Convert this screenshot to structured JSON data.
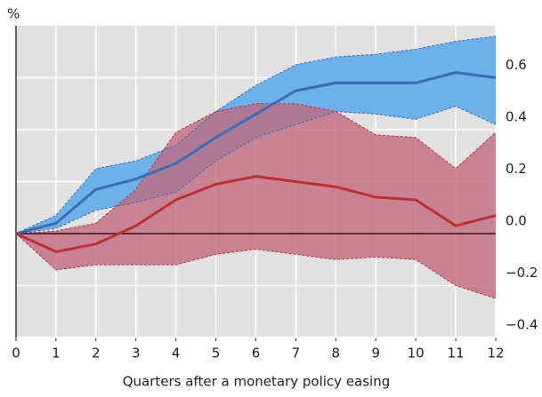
{
  "chart_data": {
    "type": "line",
    "y_label": "%",
    "x_label": "Quarters after a monetary policy easing",
    "x": [
      0,
      1,
      2,
      3,
      4,
      5,
      6,
      7,
      8,
      9,
      10,
      11,
      12
    ],
    "xlim": [
      0,
      12
    ],
    "xticks": [
      0,
      1,
      2,
      3,
      4,
      5,
      6,
      7,
      8,
      9,
      10,
      11,
      12
    ],
    "ylim": [
      -0.4,
      0.8
    ],
    "yticks": [
      {
        "value": -0.4,
        "label": "−0.4"
      },
      {
        "value": -0.2,
        "label": "−0.2"
      },
      {
        "value": 0,
        "label": "0.0"
      },
      0.2,
      0.4,
      0.6
    ],
    "grid": true,
    "series": [
      {
        "color": "#3a6db4",
        "band_color": "#6cb2e8",
        "values": [
          0,
          0.04,
          0.17,
          0.21,
          0.27,
          0.37,
          0.46,
          0.55,
          0.58,
          0.58,
          0.58,
          0.62,
          0.6
        ],
        "upper": [
          0,
          0.07,
          0.25,
          0.28,
          0.34,
          0.47,
          0.57,
          0.65,
          0.68,
          0.69,
          0.71,
          0.74,
          0.76
        ],
        "lower": [
          0,
          0.02,
          0.09,
          0.12,
          0.16,
          0.28,
          0.37,
          0.42,
          0.47,
          0.46,
          0.44,
          0.49,
          0.42
        ]
      },
      {
        "color": "#c0302f",
        "band_color": "#c06a80",
        "values": [
          0,
          -0.07,
          -0.04,
          0.03,
          0.13,
          0.19,
          0.22,
          0.2,
          0.18,
          0.14,
          0.13,
          0.03,
          0.07
        ],
        "upper": [
          0,
          0.01,
          0.04,
          0.17,
          0.39,
          0.47,
          0.5,
          0.5,
          0.47,
          0.38,
          0.37,
          0.25,
          0.39
        ],
        "lower": [
          0,
          -0.14,
          -0.12,
          -0.12,
          -0.12,
          -0.08,
          -0.06,
          -0.08,
          -0.1,
          -0.09,
          -0.1,
          -0.2,
          -0.25
        ]
      }
    ]
  }
}
